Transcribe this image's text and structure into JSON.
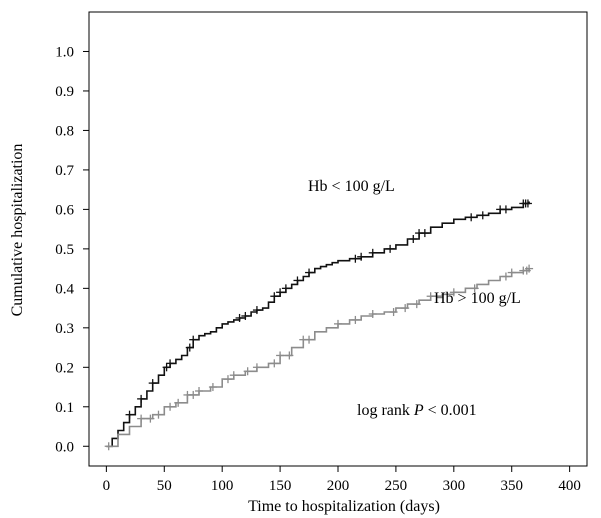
{
  "chart_data": {
    "type": "line",
    "title": "",
    "xlabel": "Time to hospitalization (days)",
    "ylabel": "Cumulative hospitalization",
    "xlim": [
      -15,
      415
    ],
    "ylim": [
      -0.05,
      1.1
    ],
    "xticks": [
      0,
      50,
      100,
      150,
      200,
      250,
      300,
      350,
      400
    ],
    "xtick_labels": [
      "0",
      "50",
      "100",
      "150",
      "200",
      "250",
      "300",
      "350",
      "400"
    ],
    "yticks": [
      0.0,
      0.1,
      0.2,
      0.3,
      0.4,
      0.5,
      0.6,
      0.7,
      0.8,
      0.9,
      1.0
    ],
    "ytick_labels": [
      "0.0",
      "0.1",
      "0.2",
      "0.3",
      "0.4",
      "0.5",
      "0.6",
      "0.7",
      "0.8",
      "0.9",
      "1.0"
    ],
    "grid": false,
    "legend": "none",
    "series": [
      {
        "name": "Hb < 100 g/L",
        "color": "#111111",
        "points": [
          [
            0,
            0.0
          ],
          [
            5,
            0.02
          ],
          [
            10,
            0.04
          ],
          [
            15,
            0.06
          ],
          [
            20,
            0.08
          ],
          [
            25,
            0.1
          ],
          [
            30,
            0.12
          ],
          [
            35,
            0.14
          ],
          [
            40,
            0.16
          ],
          [
            45,
            0.18
          ],
          [
            50,
            0.2
          ],
          [
            55,
            0.21
          ],
          [
            60,
            0.22
          ],
          [
            65,
            0.23
          ],
          [
            70,
            0.25
          ],
          [
            75,
            0.27
          ],
          [
            80,
            0.28
          ],
          [
            85,
            0.285
          ],
          [
            90,
            0.29
          ],
          [
            95,
            0.3
          ],
          [
            100,
            0.31
          ],
          [
            105,
            0.315
          ],
          [
            110,
            0.32
          ],
          [
            115,
            0.325
          ],
          [
            120,
            0.33
          ],
          [
            125,
            0.34
          ],
          [
            130,
            0.345
          ],
          [
            135,
            0.35
          ],
          [
            140,
            0.365
          ],
          [
            145,
            0.38
          ],
          [
            150,
            0.39
          ],
          [
            155,
            0.4
          ],
          [
            160,
            0.41
          ],
          [
            165,
            0.42
          ],
          [
            170,
            0.43
          ],
          [
            175,
            0.44
          ],
          [
            180,
            0.45
          ],
          [
            185,
            0.455
          ],
          [
            190,
            0.46
          ],
          [
            195,
            0.465
          ],
          [
            200,
            0.47
          ],
          [
            210,
            0.475
          ],
          [
            220,
            0.48
          ],
          [
            230,
            0.49
          ],
          [
            240,
            0.5
          ],
          [
            250,
            0.51
          ],
          [
            260,
            0.525
          ],
          [
            270,
            0.54
          ],
          [
            280,
            0.555
          ],
          [
            290,
            0.565
          ],
          [
            300,
            0.575
          ],
          [
            310,
            0.58
          ],
          [
            320,
            0.585
          ],
          [
            330,
            0.59
          ],
          [
            340,
            0.6
          ],
          [
            350,
            0.605
          ],
          [
            360,
            0.615
          ],
          [
            365,
            0.62
          ]
        ],
        "censor_marks_x": [
          20,
          30,
          40,
          52,
          55,
          72,
          75,
          115,
          120,
          130,
          145,
          150,
          155,
          165,
          175,
          215,
          220,
          230,
          245,
          265,
          270,
          275,
          315,
          325,
          340,
          345,
          360,
          362,
          364
        ]
      },
      {
        "name": "Hb > 100 g/L",
        "color": "#8c8c8c",
        "points": [
          [
            0,
            0.0
          ],
          [
            10,
            0.03
          ],
          [
            20,
            0.05
          ],
          [
            30,
            0.07
          ],
          [
            40,
            0.08
          ],
          [
            50,
            0.1
          ],
          [
            60,
            0.11
          ],
          [
            70,
            0.13
          ],
          [
            80,
            0.14
          ],
          [
            90,
            0.15
          ],
          [
            100,
            0.17
          ],
          [
            110,
            0.18
          ],
          [
            120,
            0.19
          ],
          [
            130,
            0.2
          ],
          [
            140,
            0.21
          ],
          [
            150,
            0.23
          ],
          [
            160,
            0.25
          ],
          [
            170,
            0.27
          ],
          [
            180,
            0.29
          ],
          [
            190,
            0.3
          ],
          [
            200,
            0.31
          ],
          [
            210,
            0.32
          ],
          [
            220,
            0.33
          ],
          [
            230,
            0.335
          ],
          [
            240,
            0.34
          ],
          [
            250,
            0.35
          ],
          [
            260,
            0.36
          ],
          [
            270,
            0.37
          ],
          [
            280,
            0.38
          ],
          [
            290,
            0.385
          ],
          [
            300,
            0.39
          ],
          [
            310,
            0.4
          ],
          [
            320,
            0.41
          ],
          [
            330,
            0.42
          ],
          [
            340,
            0.43
          ],
          [
            350,
            0.44
          ],
          [
            360,
            0.445
          ],
          [
            365,
            0.45
          ]
        ],
        "censor_marks_x": [
          2,
          30,
          38,
          45,
          55,
          62,
          70,
          75,
          80,
          92,
          105,
          110,
          122,
          130,
          145,
          150,
          158,
          170,
          175,
          200,
          215,
          230,
          248,
          258,
          268,
          280,
          300,
          318,
          345,
          350,
          360,
          363,
          365
        ]
      }
    ],
    "annotations": {
      "hb_low_label": "Hb < 100 g/L",
      "hb_high_label": "Hb > 100 g/L",
      "logrank_prefix": "log rank ",
      "logrank_p": "P",
      "logrank_suffix": " < 0.001"
    }
  }
}
